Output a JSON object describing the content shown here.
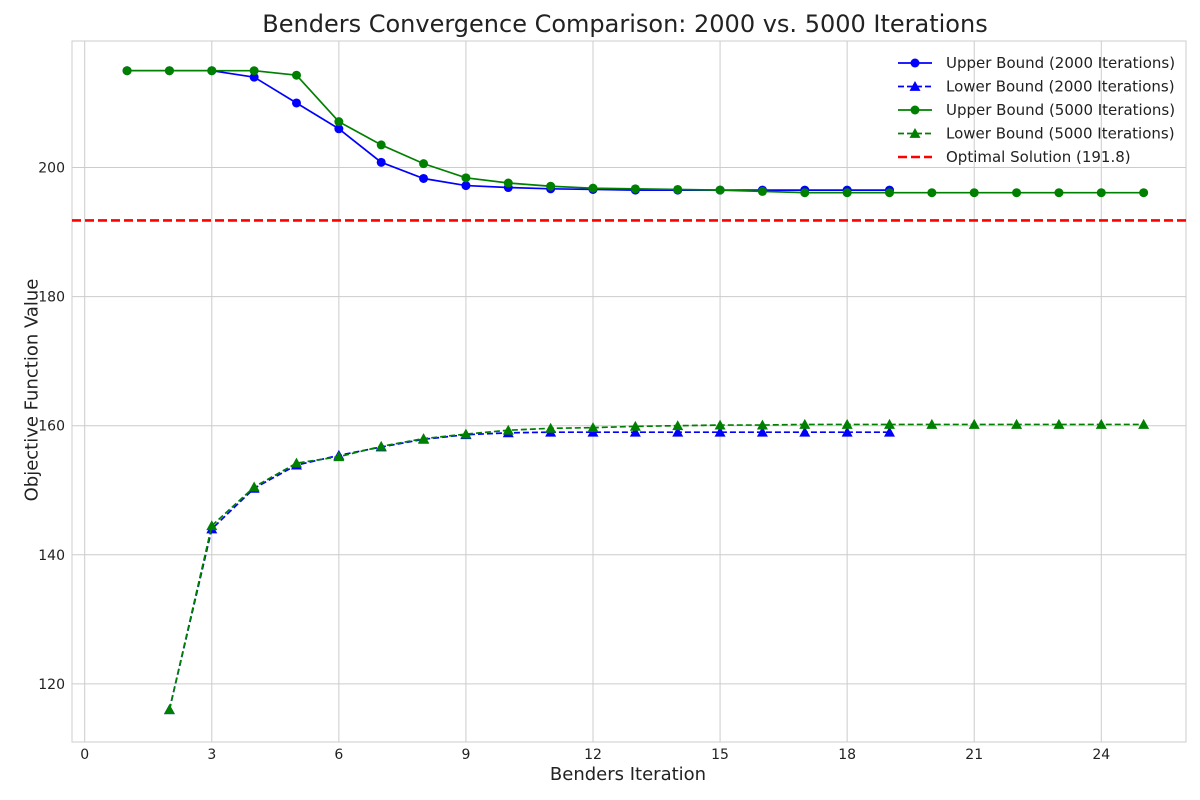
{
  "chart_data": {
    "type": "line",
    "title": "Benders Convergence Comparison: 2000 vs. 5000 Iterations",
    "xlabel": "Benders Iteration",
    "ylabel": "Objective Function Value",
    "xlim": [
      -0.3,
      26.0
    ],
    "ylim": [
      111.0,
      219.6
    ],
    "xticks": [
      0,
      3,
      6,
      9,
      12,
      15,
      18,
      21,
      24
    ],
    "yticks": [
      120,
      140,
      160,
      180,
      200
    ],
    "grid": true,
    "legend_position": "top-right",
    "series": [
      {
        "name": "Upper Bound (2000 Iterations)",
        "color": "#0000ff",
        "linestyle": "solid",
        "marker": "circle",
        "x": [
          1,
          2,
          3,
          4,
          5,
          6,
          7,
          8,
          9,
          10,
          11,
          12,
          13,
          14,
          15,
          16,
          17,
          18,
          19
        ],
        "y": [
          215.0,
          215.0,
          215.0,
          214.0,
          210.0,
          206.0,
          200.8,
          198.3,
          197.2,
          196.9,
          196.7,
          196.6,
          196.5,
          196.5,
          196.5,
          196.5,
          196.5,
          196.5,
          196.5
        ]
      },
      {
        "name": "Lower Bound (2000 Iterations)",
        "color": "#0000ff",
        "linestyle": "dashed",
        "marker": "triangle",
        "x": [
          2,
          3,
          4,
          5,
          6,
          7,
          8,
          9,
          10,
          11,
          12,
          13,
          14,
          15,
          16,
          17,
          18,
          19
        ],
        "y": [
          116.0,
          144.0,
          150.3,
          153.9,
          155.4,
          156.7,
          157.9,
          158.6,
          158.9,
          159.0,
          159.0,
          159.0,
          159.0,
          159.0,
          159.0,
          159.0,
          159.0,
          159.0
        ]
      },
      {
        "name": "Upper Bound (5000 Iterations)",
        "color": "#008000",
        "linestyle": "solid",
        "marker": "circle",
        "x": [
          1,
          2,
          3,
          4,
          5,
          6,
          7,
          8,
          9,
          10,
          11,
          12,
          13,
          14,
          15,
          16,
          17,
          18,
          19,
          20,
          21,
          22,
          23,
          24,
          25
        ],
        "y": [
          215.0,
          215.0,
          215.0,
          215.0,
          214.3,
          207.1,
          203.5,
          200.6,
          198.4,
          197.6,
          197.1,
          196.8,
          196.7,
          196.6,
          196.5,
          196.3,
          196.1,
          196.1,
          196.1,
          196.1,
          196.1,
          196.1,
          196.1,
          196.1,
          196.1
        ]
      },
      {
        "name": "Lower Bound (5000 Iterations)",
        "color": "#008000",
        "linestyle": "dashed",
        "marker": "triangle",
        "x": [
          2,
          3,
          4,
          5,
          6,
          7,
          8,
          9,
          10,
          11,
          12,
          13,
          14,
          15,
          16,
          17,
          18,
          19,
          20,
          21,
          22,
          23,
          24,
          25
        ],
        "y": [
          116.0,
          144.5,
          150.5,
          154.2,
          155.2,
          156.8,
          158.0,
          158.7,
          159.3,
          159.6,
          159.7,
          159.9,
          160.0,
          160.1,
          160.1,
          160.2,
          160.2,
          160.2,
          160.2,
          160.2,
          160.2,
          160.2,
          160.2,
          160.2
        ]
      }
    ],
    "reference_line": {
      "name": "Optimal Solution (191.8)",
      "color": "#ff0000",
      "linestyle": "dashed",
      "y": 191.8
    }
  }
}
